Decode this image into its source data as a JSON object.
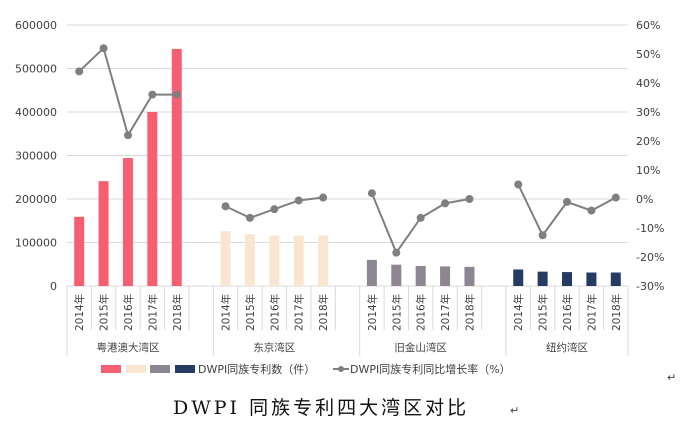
{
  "chart_data": {
    "type": "bar+line",
    "title": "DWPI 同族专利四大湾区对比",
    "caption_mark": "↵",
    "groups": [
      "粤港澳大湾区",
      "东京湾区",
      "旧金山湾区",
      "纽约湾区"
    ],
    "years": [
      "2014年",
      "2015年",
      "2016年",
      "2017年",
      "2018年"
    ],
    "group_colors": [
      "#f65e72",
      "#fae6d0",
      "#8e8593",
      "#253b63"
    ],
    "line_color": "#7f7f7f",
    "y_left": {
      "min": 0,
      "max": 600000,
      "ticks": [
        "0",
        "100000",
        "200000",
        "300000",
        "400000",
        "500000",
        "600000"
      ]
    },
    "y_right": {
      "min": -30,
      "max": 60,
      "ticks": [
        "-30%",
        "-20%",
        "-10%",
        "0%",
        "10%",
        "20%",
        "30%",
        "40%",
        "50%",
        "60%"
      ]
    },
    "series": [
      {
        "name": "DWPI同族专利数（件）",
        "type": "bar",
        "axis": "left",
        "values": [
          [
            159000,
            241000,
            294000,
            400000,
            545000
          ],
          [
            126000,
            119000,
            116000,
            116000,
            116000
          ],
          [
            60000,
            49000,
            46000,
            45000,
            44000
          ],
          [
            38000,
            33000,
            32000,
            31000,
            31000
          ]
        ]
      },
      {
        "name": "DWPI同族专利同比增长率（%）",
        "type": "line",
        "axis": "right",
        "values": [
          [
            44,
            52,
            22,
            36,
            36
          ],
          [
            -2.5,
            -6.5,
            -3.5,
            -0.5,
            0.5
          ],
          [
            2,
            -18.5,
            -6.5,
            -1.5,
            0
          ],
          [
            5,
            -12.5,
            -1,
            -4,
            0.5
          ]
        ]
      }
    ],
    "grid": true,
    "legend": "bottom"
  }
}
